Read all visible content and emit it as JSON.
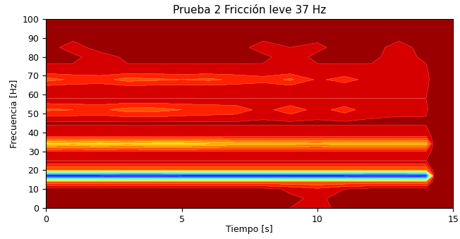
{
  "chart_data": {
    "type": "contour",
    "title": "Prueba 2 Fricción leve 37 Hz",
    "x_label": "Tiempo [s]",
    "y_label": "Frecuencia [Hz]",
    "xlim": [
      0,
      15
    ],
    "xticks": [
      0,
      5,
      10,
      15
    ],
    "ylim": [
      0,
      100
    ],
    "yticks": [
      0,
      10,
      20,
      30,
      40,
      50,
      60,
      70,
      80,
      90,
      100
    ],
    "x": [
      0,
      1,
      2,
      3,
      4,
      5,
      6,
      7,
      8,
      9,
      10,
      11,
      12,
      13,
      14,
      14.3,
      15
    ],
    "y": [
      0,
      5,
      10,
      14,
      17,
      20,
      25,
      30,
      34,
      38,
      45,
      52,
      58,
      63,
      68,
      73,
      80,
      85,
      90,
      100
    ],
    "zlim": [
      0,
      1
    ],
    "z": [
      [
        0.04,
        0.04,
        0.04,
        0.04,
        0.04,
        0.04,
        0.04,
        0.04,
        0.04,
        0.05,
        0.06,
        0.04,
        0.04,
        0.04,
        0.04,
        0.02,
        0.02
      ],
      [
        0.02,
        0.02,
        0.02,
        0.02,
        0.02,
        0.02,
        0.02,
        0.02,
        0.02,
        0.04,
        0.06,
        0.03,
        0.02,
        0.02,
        0.02,
        0.02,
        0.02
      ],
      [
        0.03,
        0.03,
        0.03,
        0.03,
        0.03,
        0.03,
        0.03,
        0.03,
        0.03,
        0.06,
        0.09,
        0.05,
        0.03,
        0.03,
        0.03,
        0.02,
        0.02
      ],
      [
        0.2,
        0.2,
        0.2,
        0.2,
        0.2,
        0.2,
        0.2,
        0.2,
        0.2,
        0.2,
        0.2,
        0.2,
        0.2,
        0.2,
        0.2,
        0.02,
        0.02
      ],
      [
        0.9,
        0.9,
        0.9,
        0.92,
        0.92,
        0.9,
        0.9,
        0.9,
        0.9,
        0.9,
        0.9,
        0.9,
        0.92,
        0.92,
        0.9,
        0.02,
        0.02
      ],
      [
        0.2,
        0.2,
        0.2,
        0.2,
        0.2,
        0.2,
        0.2,
        0.2,
        0.2,
        0.2,
        0.2,
        0.2,
        0.2,
        0.2,
        0.2,
        0.02,
        0.02
      ],
      [
        0.05,
        0.05,
        0.05,
        0.05,
        0.05,
        0.05,
        0.05,
        0.05,
        0.05,
        0.05,
        0.05,
        0.05,
        0.05,
        0.05,
        0.05,
        0.02,
        0.02
      ],
      [
        0.1,
        0.1,
        0.1,
        0.1,
        0.1,
        0.1,
        0.1,
        0.1,
        0.1,
        0.1,
        0.1,
        0.1,
        0.1,
        0.1,
        0.1,
        0.02,
        0.02
      ],
      [
        0.32,
        0.3,
        0.32,
        0.3,
        0.32,
        0.32,
        0.3,
        0.28,
        0.28,
        0.27,
        0.26,
        0.28,
        0.27,
        0.28,
        0.27,
        0.02,
        0.02
      ],
      [
        0.1,
        0.1,
        0.1,
        0.1,
        0.1,
        0.1,
        0.1,
        0.1,
        0.1,
        0.1,
        0.1,
        0.1,
        0.1,
        0.1,
        0.1,
        0.02,
        0.02
      ],
      [
        0.04,
        0.04,
        0.04,
        0.04,
        0.04,
        0.04,
        0.04,
        0.04,
        0.04,
        0.04,
        0.04,
        0.04,
        0.04,
        0.04,
        0.04,
        0.02,
        0.02
      ],
      [
        0.16,
        0.15,
        0.14,
        0.17,
        0.17,
        0.15,
        0.14,
        0.13,
        0.08,
        0.13,
        0.08,
        0.12,
        0.07,
        0.06,
        0.06,
        0.02,
        0.02
      ],
      [
        0.05,
        0.05,
        0.05,
        0.05,
        0.05,
        0.05,
        0.05,
        0.05,
        0.05,
        0.05,
        0.05,
        0.05,
        0.05,
        0.05,
        0.05,
        0.02,
        0.02
      ],
      [
        0.06,
        0.06,
        0.06,
        0.06,
        0.06,
        0.06,
        0.06,
        0.06,
        0.06,
        0.06,
        0.06,
        0.06,
        0.06,
        0.06,
        0.06,
        0.02,
        0.02
      ],
      [
        0.17,
        0.14,
        0.13,
        0.17,
        0.16,
        0.15,
        0.16,
        0.14,
        0.12,
        0.16,
        0.09,
        0.12,
        0.08,
        0.08,
        0.07,
        0.02,
        0.02
      ],
      [
        0.06,
        0.06,
        0.06,
        0.06,
        0.06,
        0.06,
        0.06,
        0.06,
        0.06,
        0.06,
        0.06,
        0.06,
        0.06,
        0.06,
        0.06,
        0.02,
        0.02
      ],
      [
        0.04,
        0.04,
        0.07,
        0.04,
        0.04,
        0.04,
        0.04,
        0.04,
        0.04,
        0.07,
        0.04,
        0.04,
        0.04,
        0.07,
        0.04,
        0.02,
        0.02
      ],
      [
        0.03,
        0.07,
        0.03,
        0.03,
        0.03,
        0.03,
        0.03,
        0.03,
        0.07,
        0.05,
        0.06,
        0.03,
        0.03,
        0.07,
        0.03,
        0.02,
        0.02
      ],
      [
        0.04,
        0.04,
        0.04,
        0.04,
        0.04,
        0.04,
        0.04,
        0.04,
        0.04,
        0.04,
        0.04,
        0.04,
        0.04,
        0.04,
        0.04,
        0.02,
        0.02
      ],
      [
        0.03,
        0.03,
        0.03,
        0.03,
        0.03,
        0.03,
        0.03,
        0.03,
        0.03,
        0.03,
        0.03,
        0.03,
        0.03,
        0.03,
        0.03,
        0.02,
        0.02
      ]
    ]
  }
}
